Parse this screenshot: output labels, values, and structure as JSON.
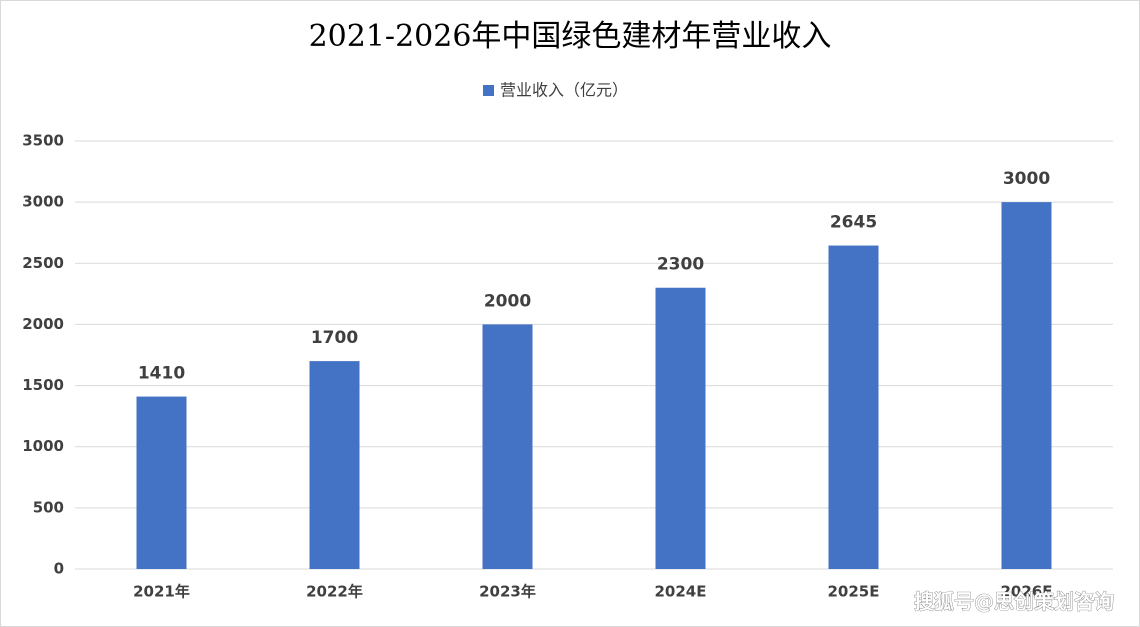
{
  "chart_data": {
    "type": "bar",
    "title": "2021-2026年中国绿色建材年营业收入",
    "categories": [
      "2021年",
      "2022年",
      "2023年",
      "2024E",
      "2025E",
      "2026E"
    ],
    "series": [
      {
        "name": "营业收入（亿元）",
        "color": "#4472c4",
        "values": [
          1410,
          1700,
          2000,
          2300,
          2645,
          3000
        ]
      }
    ],
    "ylim": [
      0,
      3500
    ],
    "yticks": [
      0,
      500,
      1000,
      1500,
      2000,
      2500,
      3000,
      3500
    ],
    "grid": true,
    "legend": "top",
    "watermark": "搜狐号@思创策划咨询"
  }
}
